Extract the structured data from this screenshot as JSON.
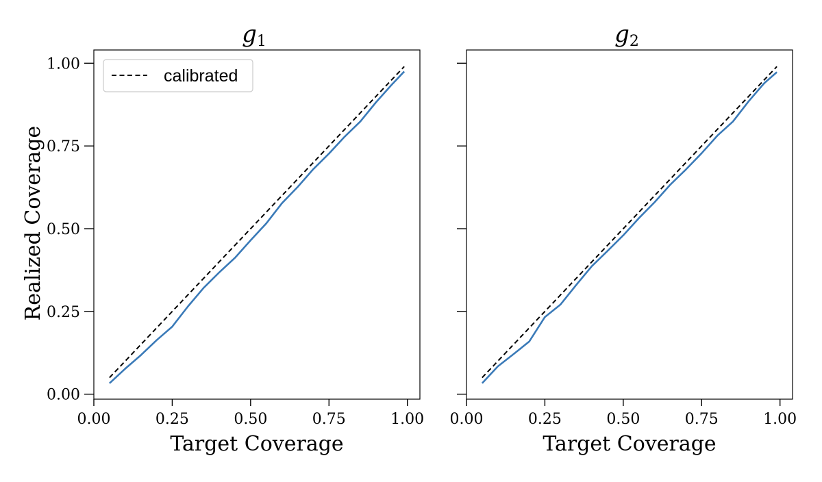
{
  "chart_data": [
    {
      "type": "line",
      "title": "g",
      "title_sub": "1",
      "xlabel": "Target Coverage",
      "ylabel": "Realized Coverage",
      "xlim": [
        0.0,
        1.04
      ],
      "ylim": [
        -0.015,
        1.04
      ],
      "xticks": [
        0.0,
        0.25,
        0.5,
        0.75,
        1.0
      ],
      "yticks": [
        0.0,
        0.25,
        0.5,
        0.75,
        1.0
      ],
      "xtick_labels": [
        "0.00",
        "0.25",
        "0.50",
        "0.75",
        "1.00"
      ],
      "ytick_labels": [
        "0.00",
        "0.25",
        "0.50",
        "0.75",
        "1.00"
      ],
      "show_ytick_labels": true,
      "grid": false,
      "legend": {
        "placement": "upper-left",
        "entries": [
          {
            "label": "calibrated",
            "style": "dashed",
            "color": "#000000"
          }
        ]
      },
      "series": [
        {
          "name": "calibrated",
          "color": "#000000",
          "style": "dashed",
          "x": [
            0.05,
            0.99
          ],
          "y": [
            0.05,
            0.99
          ]
        },
        {
          "color": "#3a7ab8",
          "style": "solid",
          "x": [
            0.05,
            0.1,
            0.15,
            0.2,
            0.25,
            0.3,
            0.35,
            0.4,
            0.45,
            0.5,
            0.55,
            0.6,
            0.65,
            0.7,
            0.75,
            0.8,
            0.85,
            0.9,
            0.95,
            0.99
          ],
          "y": [
            0.033,
            0.077,
            0.118,
            0.163,
            0.204,
            0.265,
            0.321,
            0.368,
            0.412,
            0.465,
            0.516,
            0.577,
            0.626,
            0.68,
            0.727,
            0.778,
            0.824,
            0.882,
            0.935,
            0.975
          ]
        }
      ]
    },
    {
      "type": "line",
      "title": "g",
      "title_sub": "2",
      "xlabel": "Target Coverage",
      "ylabel": "",
      "xlim": [
        0.0,
        1.04
      ],
      "ylim": [
        -0.015,
        1.04
      ],
      "xticks": [
        0.0,
        0.25,
        0.5,
        0.75,
        1.0
      ],
      "yticks": [
        0.0,
        0.25,
        0.5,
        0.75,
        1.0
      ],
      "xtick_labels": [
        "0.00",
        "0.25",
        "0.50",
        "0.75",
        "1.00"
      ],
      "ytick_labels": [],
      "show_ytick_labels": false,
      "grid": false,
      "series": [
        {
          "color": "#000000",
          "style": "dashed",
          "x": [
            0.05,
            0.99
          ],
          "y": [
            0.05,
            0.99
          ]
        },
        {
          "color": "#3a7ab8",
          "style": "solid",
          "x": [
            0.05,
            0.1,
            0.15,
            0.2,
            0.25,
            0.3,
            0.35,
            0.4,
            0.45,
            0.5,
            0.55,
            0.6,
            0.65,
            0.7,
            0.75,
            0.8,
            0.85,
            0.9,
            0.95,
            0.99
          ],
          "y": [
            0.033,
            0.084,
            0.121,
            0.159,
            0.233,
            0.271,
            0.33,
            0.387,
            0.433,
            0.48,
            0.532,
            0.58,
            0.633,
            0.679,
            0.728,
            0.781,
            0.824,
            0.885,
            0.94,
            0.973
          ]
        }
      ]
    }
  ]
}
